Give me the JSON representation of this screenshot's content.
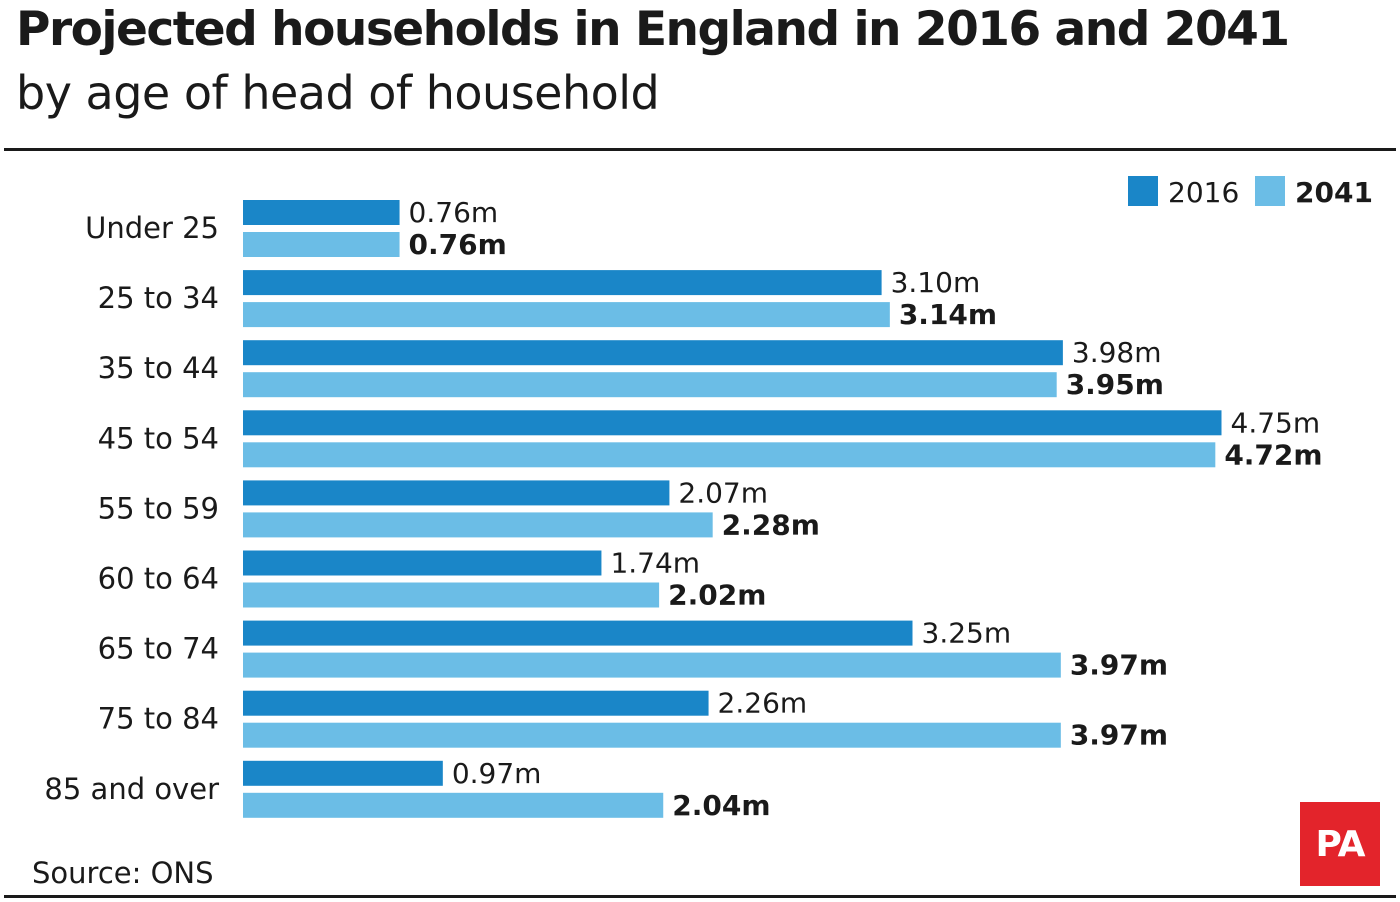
{
  "header": {
    "title": "Projected households in England in 2016 and 2041",
    "subtitle": "by age of head of household"
  },
  "footer": {
    "source": "Source: ONS",
    "logo": "PA"
  },
  "colors": {
    "series_2016": "#1a86c8",
    "series_2041": "#6bbde6",
    "logo_bg": "#e3242b",
    "text": "#1a1a1a"
  },
  "chart_data": {
    "type": "bar",
    "orientation": "horizontal",
    "title": "Projected households in England in 2016 and 2041",
    "subtitle": "by age of head of household",
    "categories": [
      "Under 25",
      "25 to 34",
      "35 to 44",
      "45 to 54",
      "55 to 59",
      "60 to 64",
      "65 to 74",
      "75 to 84",
      "85 and over"
    ],
    "series": [
      {
        "name": "2016",
        "values": [
          0.76,
          3.1,
          3.98,
          4.75,
          2.07,
          1.74,
          3.25,
          2.26,
          0.97
        ],
        "labels": [
          "0.76m",
          "3.10m",
          "3.98m",
          "4.75m",
          "2.07m",
          "1.74m",
          "3.25m",
          "2.26m",
          "0.97m"
        ]
      },
      {
        "name": "2041",
        "values": [
          0.76,
          3.14,
          3.95,
          4.72,
          2.28,
          2.02,
          3.97,
          3.97,
          2.04
        ],
        "labels": [
          "0.76m",
          "3.14m",
          "3.95m",
          "4.72m",
          "2.28m",
          "2.02m",
          "3.97m",
          "3.97m",
          "2.04m"
        ]
      }
    ],
    "unit": "m",
    "legend_position": "top-right",
    "grid": false
  }
}
